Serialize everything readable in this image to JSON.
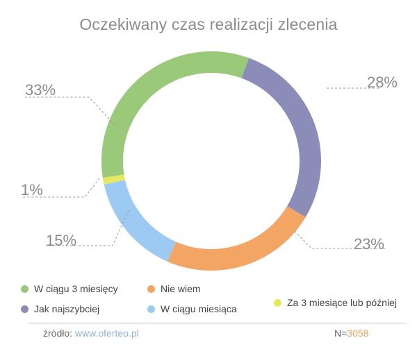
{
  "chart_data": {
    "type": "pie",
    "variant": "donut",
    "title": "Oczekiwany czas realizacji zlecenia",
    "slices": [
      {
        "name": "Jak najszybciej",
        "value": 28,
        "label": "28%",
        "color": "#8b8cb8"
      },
      {
        "name": "Nie wiem",
        "value": 23,
        "label": "23%",
        "color": "#f3a563"
      },
      {
        "name": "W ciągu miesiąca",
        "value": 15,
        "label": "15%",
        "color": "#9dcaf2"
      },
      {
        "name": "Za 3 miesiące lub później",
        "value": 1,
        "label": "1%",
        "color": "#e3ea5f"
      },
      {
        "name": "W ciągu 3 miesięcy",
        "value": 33,
        "label": "33%",
        "color": "#9bc97a"
      }
    ],
    "legend_order": [
      {
        "name": "W ciągu 3 miesięcy",
        "color": "#9bc97a"
      },
      {
        "name": "Nie wiem",
        "color": "#f3a563"
      },
      {
        "name": "Jak najszybciej",
        "color": "#8b8cb8"
      },
      {
        "name": "W ciągu miesiąca",
        "color": "#9dcaf2"
      },
      {
        "name": "Za 3 miesiące lub później",
        "color": "#e3ea5f"
      }
    ],
    "legend_position": "bottom"
  },
  "footer": {
    "source_label": "źródło: ",
    "source_link": "www.oferteo.pl",
    "n_label": "N=",
    "n_value": "3058"
  }
}
